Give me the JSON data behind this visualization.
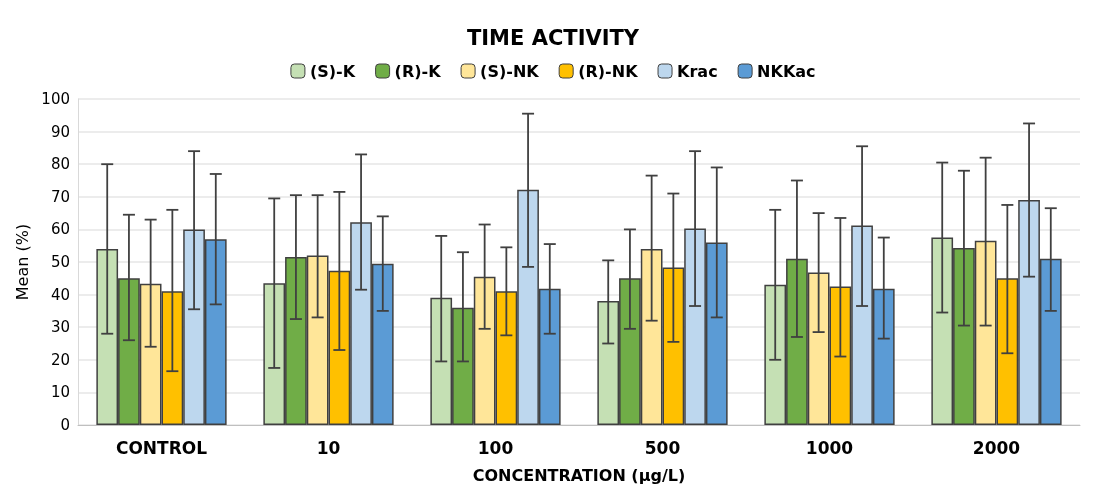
{
  "chart_data": {
    "type": "bar",
    "title": "TIME ACTIVITY",
    "xlabel": "CONCENTRATION (µg/L)",
    "ylabel": "Mean (%)",
    "categories": [
      "CONTROL",
      "10",
      "100",
      "500",
      "1000",
      "2000"
    ],
    "series": [
      {
        "name": "(S)-K",
        "color": "#c5e0b4",
        "values": [
          54,
          43.5,
          39,
          38,
          43,
          57.5
        ],
        "errors": [
          [
            28,
            80
          ],
          [
            17.5,
            69.5
          ],
          [
            19.5,
            58
          ],
          [
            25,
            50.5
          ],
          [
            20,
            66
          ],
          [
            34.5,
            80.5
          ]
        ]
      },
      {
        "name": "(R)-K",
        "color": "#70ad47",
        "values": [
          45,
          51.5,
          36,
          45,
          51,
          54.3
        ],
        "errors": [
          [
            26,
            64.5
          ],
          [
            32.5,
            70.5
          ],
          [
            19.5,
            53
          ],
          [
            29.5,
            60
          ],
          [
            27,
            75
          ],
          [
            30.5,
            78
          ]
        ]
      },
      {
        "name": "(S)-NK",
        "color": "#ffe699",
        "values": [
          43.3,
          52,
          45.5,
          54,
          46.8,
          56.5
        ],
        "errors": [
          [
            24,
            63
          ],
          [
            33,
            70.5
          ],
          [
            29.5,
            61.5
          ],
          [
            32,
            76.5
          ],
          [
            28.5,
            65
          ],
          [
            30.5,
            82
          ]
        ]
      },
      {
        "name": "(R)-NK",
        "color": "#ffc000",
        "values": [
          41,
          47.3,
          41,
          48.3,
          42.5,
          45
        ],
        "errors": [
          [
            16.5,
            66
          ],
          [
            23,
            71.5
          ],
          [
            27.5,
            54.5
          ],
          [
            25.5,
            71
          ],
          [
            21,
            63.5
          ],
          [
            22,
            67.5
          ]
        ]
      },
      {
        "name": "Krac",
        "color": "#bdd7ee",
        "values": [
          60,
          62.2,
          72.2,
          60.3,
          61.2,
          69
        ],
        "errors": [
          [
            35.5,
            84
          ],
          [
            41.5,
            83
          ],
          [
            48.5,
            95.5
          ],
          [
            36.5,
            84
          ],
          [
            36.5,
            85.5
          ],
          [
            45.5,
            92.5
          ]
        ]
      },
      {
        "name": "NKKac",
        "color": "#5b9bd5",
        "values": [
          57,
          49.5,
          41.8,
          56,
          41.8,
          51
        ],
        "errors": [
          [
            37,
            77
          ],
          [
            35,
            64
          ],
          [
            28,
            55.5
          ],
          [
            33,
            79
          ],
          [
            26.5,
            57.5
          ],
          [
            35,
            66.5
          ]
        ]
      }
    ],
    "ylim": [
      0,
      100
    ],
    "yticks": [
      0,
      10,
      20,
      30,
      40,
      50,
      60,
      70,
      80,
      90,
      100
    ],
    "grid": "y",
    "legend": "top"
  }
}
